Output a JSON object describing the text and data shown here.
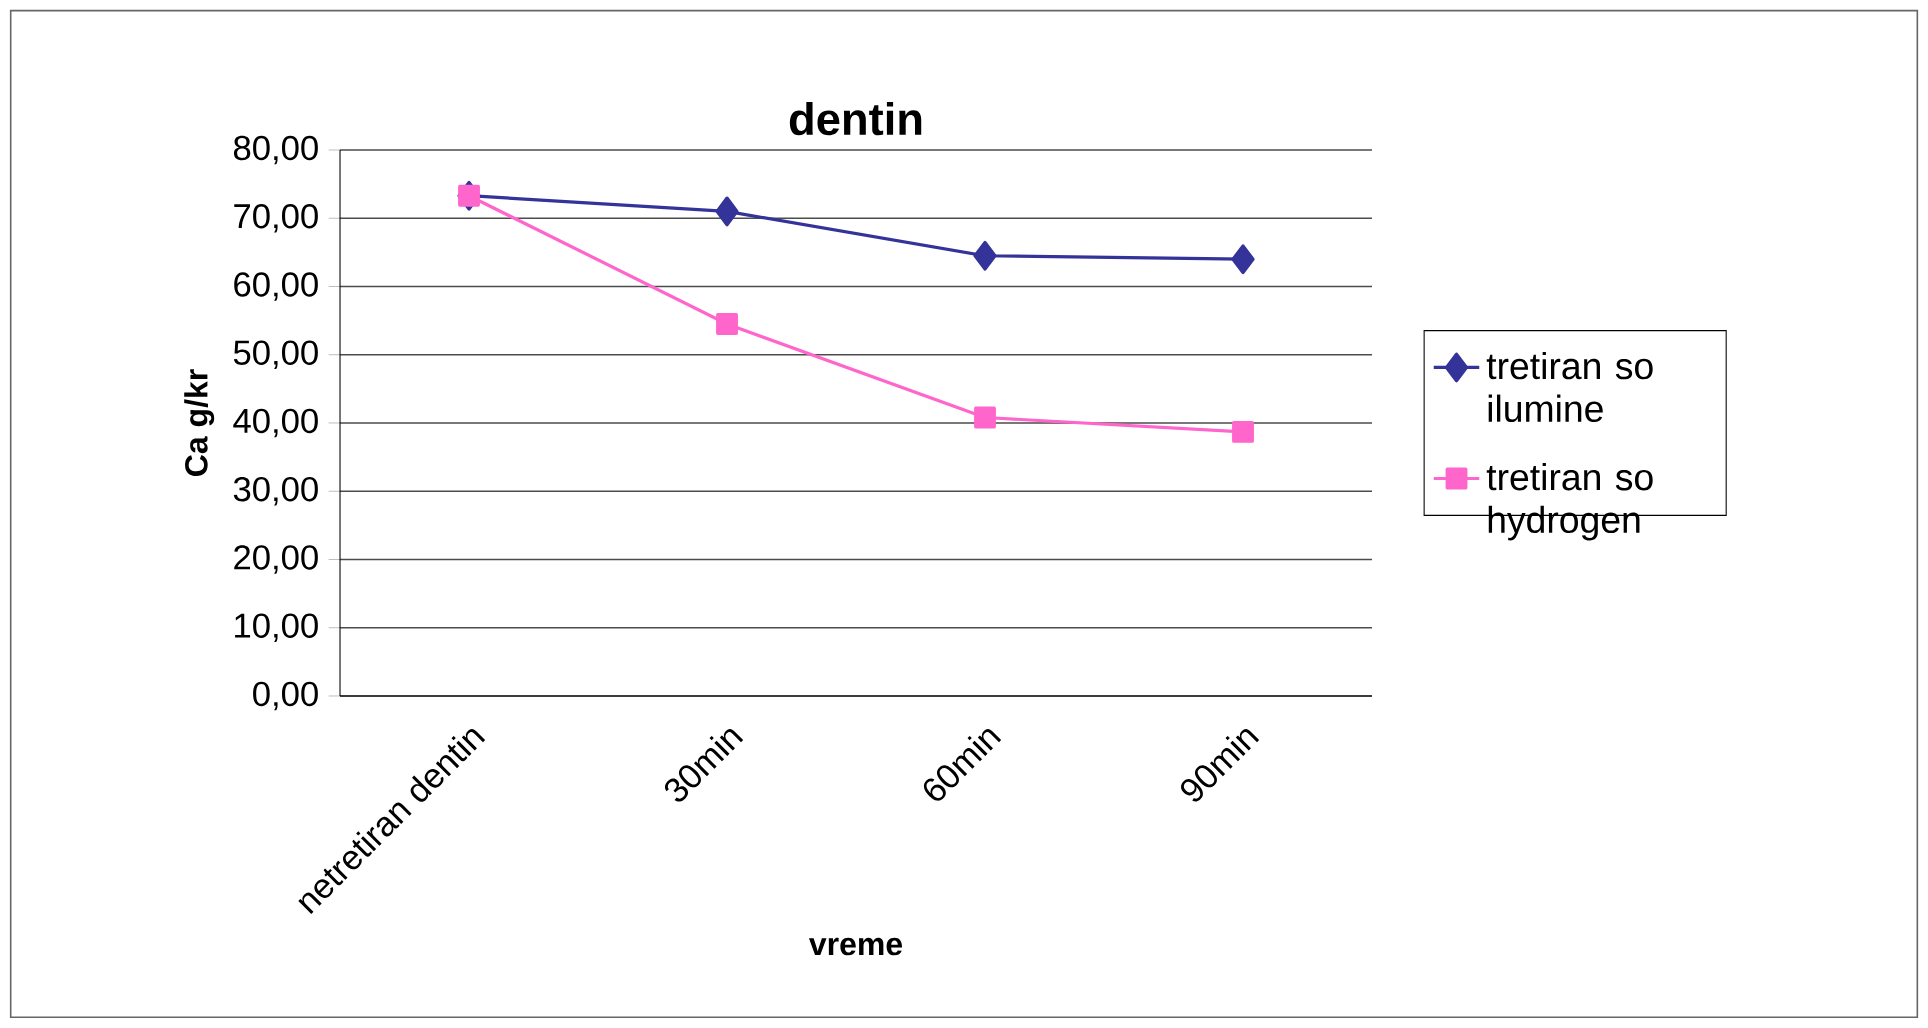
{
  "chart_data": {
    "type": "line",
    "title": "dentin",
    "xlabel": "vreme",
    "ylabel": "Ca g/kr",
    "categories": [
      "netretiran dentin",
      "30min",
      "60min",
      "90min"
    ],
    "series": [
      {
        "name": "tretiran so ilumine",
        "color": "#333399",
        "marker": "diamond",
        "values": [
          73.3,
          71.0,
          64.5,
          64.0
        ]
      },
      {
        "name": "tretiran so hydrogen",
        "color": "#ff66cc",
        "marker": "square",
        "values": [
          73.3,
          54.5,
          40.8,
          38.7
        ]
      }
    ],
    "ylim": [
      0,
      80
    ],
    "yticks": [
      {
        "value": 0,
        "label": "0,00"
      },
      {
        "value": 10,
        "label": "10,00"
      },
      {
        "value": 20,
        "label": "20,00"
      },
      {
        "value": 30,
        "label": "30,00"
      },
      {
        "value": 40,
        "label": "40,00"
      },
      {
        "value": 50,
        "label": "50,00"
      },
      {
        "value": 60,
        "label": "60,00"
      },
      {
        "value": 70,
        "label": "70,00"
      },
      {
        "value": 80,
        "label": "80,00"
      }
    ],
    "grid": "y",
    "legend": "right"
  }
}
